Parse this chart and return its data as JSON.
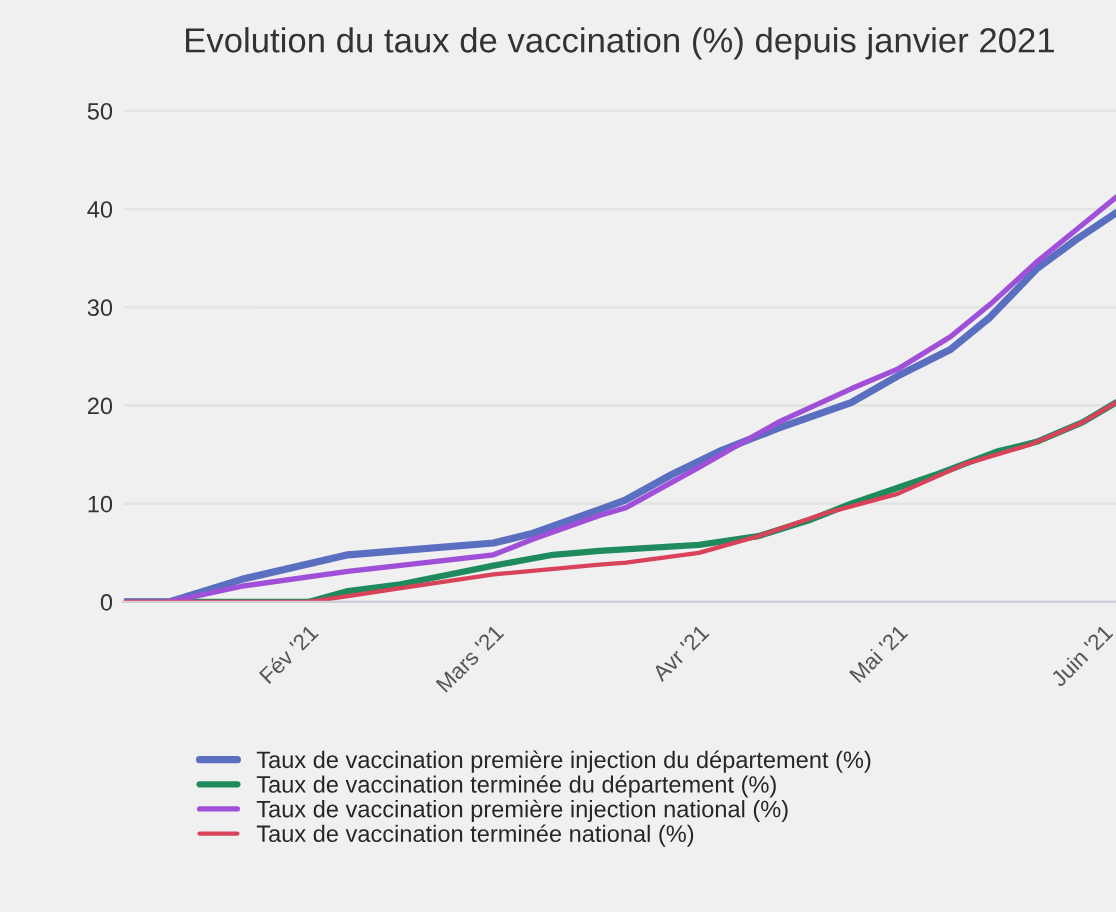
{
  "chart_data": {
    "type": "line",
    "title": "Evolution du taux de vaccination (%) depuis janvier 2021",
    "xlim": [
      "2021-01-04",
      "2021-06-03"
    ],
    "ylim": [
      0,
      52
    ],
    "xticks": [
      {
        "value": "2021-02-01",
        "label": "Fév '21"
      },
      {
        "value": "2021-03-01",
        "label": "Mars '21"
      },
      {
        "value": "2021-04-01",
        "label": "Avr '21"
      },
      {
        "value": "2021-05-01",
        "label": "Mai '21"
      },
      {
        "value": "2021-06-01",
        "label": "Juin '21"
      }
    ],
    "yticks": [
      0,
      10,
      20,
      30,
      40,
      50
    ],
    "grid": "y",
    "legend": "bottom",
    "marker": "none",
    "line_style": "solid",
    "series": [
      {
        "name": "Taux de vaccination première injection du département (%)",
        "color": "#5b6fc0",
        "x": [
          "2021-01-04",
          "2021-01-11",
          "2021-01-22",
          "2021-02-07",
          "2021-03-01",
          "2021-03-07",
          "2021-03-17",
          "2021-03-21",
          "2021-03-28",
          "2021-04-04",
          "2021-04-13",
          "2021-04-24",
          "2021-05-01",
          "2021-05-09",
          "2021-05-15",
          "2021-05-22",
          "2021-05-28",
          "2021-06-03"
        ],
        "values": [
          0,
          0,
          2.3,
          4.8,
          6.0,
          7.0,
          9.4,
          10.4,
          13.0,
          15.3,
          17.7,
          20.3,
          23.0,
          25.7,
          29.0,
          33.9,
          36.9,
          39.6
        ]
      },
      {
        "name": "Taux de vaccination terminée du département (%)",
        "color": "#1f8a5e",
        "x": [
          "2021-01-04",
          "2021-02-01",
          "2021-02-07",
          "2021-02-15",
          "2021-03-01",
          "2021-03-10",
          "2021-03-17",
          "2021-04-01",
          "2021-04-10",
          "2021-04-18",
          "2021-04-24",
          "2021-05-07",
          "2021-05-16",
          "2021-05-22",
          "2021-05-29",
          "2021-06-03"
        ],
        "values": [
          0,
          0,
          1.1,
          1.8,
          3.7,
          4.8,
          5.2,
          5.8,
          6.7,
          8.4,
          10.0,
          13.0,
          15.3,
          16.3,
          18.3,
          20.3
        ]
      },
      {
        "name": "Taux de vaccination première injection national (%)",
        "color": "#a050d8",
        "x": [
          "2021-01-04",
          "2021-01-11",
          "2021-01-22",
          "2021-02-07",
          "2021-03-01",
          "2021-03-07",
          "2021-03-17",
          "2021-03-21",
          "2021-04-01",
          "2021-04-13",
          "2021-04-24",
          "2021-05-01",
          "2021-05-09",
          "2021-05-15",
          "2021-05-22",
          "2021-05-28",
          "2021-06-03"
        ],
        "values": [
          0,
          0,
          1.6,
          3.1,
          4.8,
          6.4,
          8.8,
          9.6,
          13.7,
          18.3,
          21.7,
          23.7,
          27.0,
          30.3,
          34.6,
          37.9,
          41.2
        ]
      },
      {
        "name": "Taux de vaccination terminée national (%)",
        "color": "#d9435a",
        "x": [
          "2021-01-04",
          "2021-02-01",
          "2021-02-07",
          "2021-02-15",
          "2021-03-01",
          "2021-03-17",
          "2021-03-21",
          "2021-04-01",
          "2021-04-10",
          "2021-04-20",
          "2021-05-01",
          "2021-05-11",
          "2021-05-21",
          "2021-05-29",
          "2021-06-03"
        ],
        "values": [
          0,
          0,
          0.6,
          1.4,
          2.8,
          3.8,
          4.0,
          5.0,
          6.7,
          9.0,
          11.0,
          14.0,
          16.0,
          18.3,
          20.3
        ]
      }
    ]
  }
}
